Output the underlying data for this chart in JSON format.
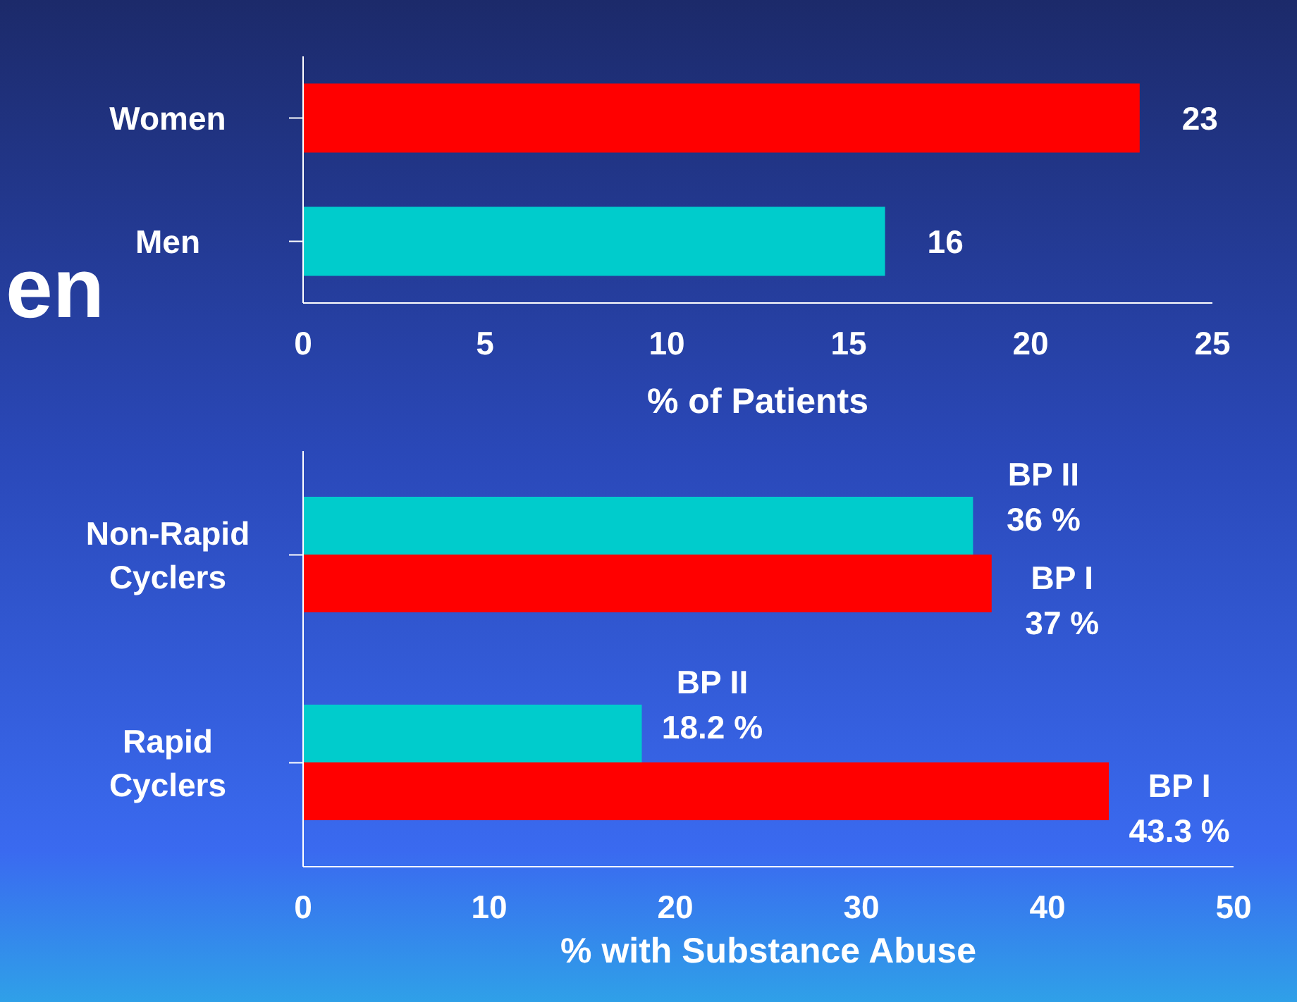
{
  "chart_data": [
    {
      "type": "bar",
      "orientation": "horizontal",
      "categories": [
        "Women",
        "Men"
      ],
      "values": [
        23,
        16
      ],
      "colors": [
        "#ff0000",
        "#00cccc"
      ],
      "data_labels": true,
      "xlim": [
        0,
        25
      ],
      "xticks": [
        0,
        5,
        10,
        15,
        20,
        25
      ],
      "xlabel": "% of Patients",
      "annotations": [
        "en"
      ],
      "grid": false,
      "legend": false
    },
    {
      "type": "bar",
      "orientation": "horizontal",
      "categories": [
        "Non-Rapid Cyclers",
        "Rapid Cyclers"
      ],
      "series": [
        {
          "name": "BP II",
          "color": "#00cccc",
          "values": [
            36,
            18.2
          ],
          "value_labels": [
            "36 %",
            "18.2 %"
          ]
        },
        {
          "name": "BP I",
          "color": "#ff0000",
          "values": [
            37,
            43.3
          ],
          "value_labels": [
            "37 %",
            "43.3 %"
          ]
        }
      ],
      "xlim": [
        0,
        50
      ],
      "xticks": [
        0,
        10,
        20,
        30,
        40,
        50
      ],
      "xlabel": "% with Substance Abuse",
      "grid": false,
      "legend": false
    }
  ]
}
